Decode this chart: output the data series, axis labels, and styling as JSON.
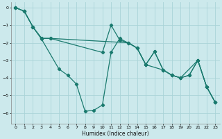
{
  "xlabel": "Humidex (Indice chaleur)",
  "xlim": [
    -0.5,
    23.5
  ],
  "ylim": [
    -6.6,
    0.3
  ],
  "yticks": [
    0,
    -1,
    -2,
    -3,
    -4,
    -5,
    -6
  ],
  "xticks": [
    0,
    1,
    2,
    3,
    4,
    5,
    6,
    7,
    8,
    9,
    10,
    11,
    12,
    13,
    14,
    15,
    16,
    17,
    18,
    19,
    20,
    21,
    22,
    23
  ],
  "background_color": "#cce9ec",
  "grid_color": "#aad4d8",
  "line_color": "#1a7a6e",
  "line1_x": [
    0,
    1,
    2,
    3,
    5,
    6,
    7,
    8,
    9,
    10,
    11,
    12,
    14,
    15,
    17,
    18,
    19,
    21,
    22,
    23
  ],
  "line1_y": [
    0.0,
    -0.2,
    -1.1,
    -1.8,
    -3.5,
    -3.85,
    -4.35,
    -5.9,
    -5.85,
    -5.55,
    -2.55,
    -1.75,
    -2.3,
    -3.25,
    -3.55,
    -3.85,
    -4.0,
    -3.0,
    -4.5,
    -5.4
  ],
  "line2_x": [
    0,
    1,
    2,
    3,
    4,
    13,
    14,
    15,
    16,
    17,
    18,
    19,
    20,
    21,
    22,
    23
  ],
  "line2_y": [
    0.0,
    -0.2,
    -1.1,
    -1.75,
    -1.75,
    -2.0,
    -2.3,
    -3.25,
    -2.5,
    -3.55,
    -3.85,
    -4.0,
    -3.85,
    -3.0,
    -4.5,
    -5.4
  ],
  "line3_x": [
    0,
    1,
    2,
    3,
    4,
    10,
    11,
    12,
    13,
    14,
    15,
    16,
    17,
    18,
    19,
    20,
    21,
    22,
    23
  ],
  "line3_y": [
    0.0,
    -0.2,
    -1.1,
    -1.75,
    -1.75,
    -2.55,
    -1.0,
    -1.85,
    -2.0,
    -2.3,
    -3.25,
    -2.5,
    -3.55,
    -3.85,
    -4.0,
    -3.85,
    -3.0,
    -4.5,
    -5.4
  ]
}
